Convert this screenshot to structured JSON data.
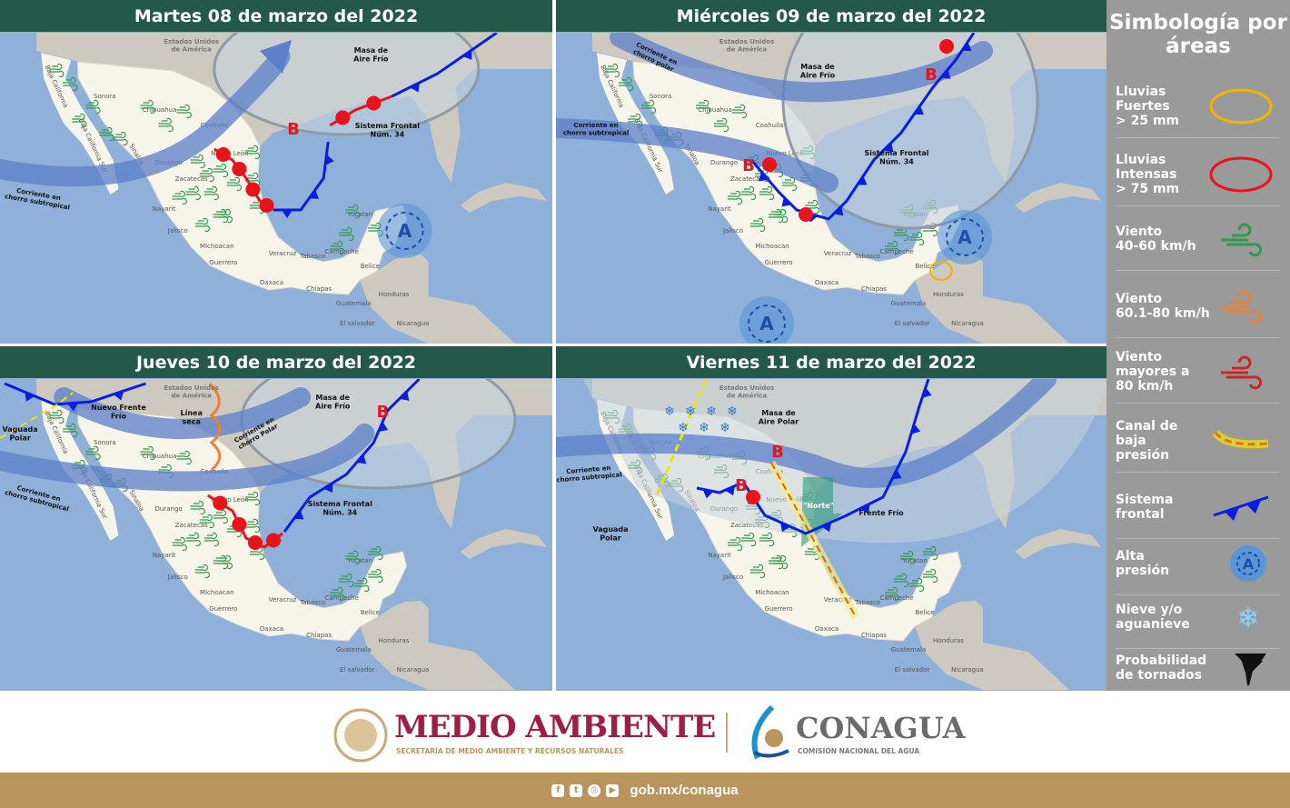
{
  "panels": [
    {
      "title": "Martes 08 de marzo del 2022",
      "annotations": [
        "Estados Unidos de América",
        "Masa de Aire Frío",
        "Sistema Frontal Núm. 34",
        "Corriente en chorro subtropical"
      ],
      "lows": [
        "B"
      ],
      "highs": [
        "A"
      ]
    },
    {
      "title": "Miércoles 09 de marzo del 2022",
      "annotations": [
        "Estados Unidos de América",
        "Corriente en chorro polar",
        "Masa de Aire Frío",
        "Corriente en chorro subtropical",
        "Sistema Frontal Núm. 34"
      ],
      "lows": [
        "B",
        "B"
      ],
      "highs": [
        "A",
        "A"
      ]
    },
    {
      "title": "Jueves 10 de marzo del 2022",
      "annotations": [
        "Estados Unidos de América",
        "Nuevo Frente Frío",
        "Vaguada Polar",
        "Línea seca",
        "Corriente en chorro Polar",
        "Corriente en chorro subtropical",
        "Masa de Aire Frío",
        "Sistema Frontal Núm. 34"
      ],
      "lows": [
        "B"
      ],
      "highs": []
    },
    {
      "title": "Viernes 11 de marzo del 2022",
      "annotations": [
        "Estados Unidos de América",
        "Corriente en chorro subtropical",
        "Masa de Aire Polar",
        "Vaguada Polar",
        "\"Norte\"",
        "Frente Frío"
      ],
      "lows": [
        "B",
        "B"
      ],
      "highs": []
    }
  ],
  "geo_labels": [
    "Sonora",
    "Chihuahua",
    "Coahuila",
    "Nuevo León",
    "Durango",
    "Zacatecas",
    "Nayarit",
    "Jalisco",
    "Michoacan",
    "Guerrero",
    "Oaxaca",
    "Veracruz",
    "Tabasco",
    "Chiapas",
    "Campeche",
    "Yucatan",
    "Belice",
    "Guatemala",
    "Honduras",
    "El salvador",
    "Nicaragua",
    "Sinaloa",
    "Baja California Sur",
    "Baja California"
  ],
  "legend": {
    "title": "Simbología por áreas",
    "items": [
      {
        "label": "Lluvias\nFuertes\n> 25 mm",
        "icon": "yellow-ellipse-icon"
      },
      {
        "label": "Lluvias\nIntensas\n> 75 mm",
        "icon": "red-ellipse-icon"
      },
      {
        "label": "Viento\n40-60 km/h",
        "icon": "green-wind-icon"
      },
      {
        "label": "Viento\n60.1-80 km/h",
        "icon": "orange-wind-icon"
      },
      {
        "label": "Viento\nmayores a\n80 km/h",
        "icon": "red-wind-icon"
      },
      {
        "label": "Canal de\nbaja\npresión",
        "icon": "trough-icon"
      },
      {
        "label": "Sistema\nfrontal",
        "icon": "cold-front-icon"
      },
      {
        "label": "Alta\npresión",
        "icon": "high-pressure-icon"
      },
      {
        "label": "Nieve y/o\naguanieve",
        "icon": "snowflake-icon"
      },
      {
        "label": "Probabilidad\nde tornados",
        "icon": "tornado-icon"
      }
    ]
  },
  "colors": {
    "title_bar": "#245848",
    "ocean": "#8fb0d8",
    "land": "#f7f4ea",
    "wind_green": "#2e9a4a",
    "wind_orange": "#e8813a",
    "wind_red": "#c8282a",
    "rain_yellow": "#f3b400",
    "rain_red": "#e8141c",
    "front_blue": "#0a1ee0",
    "footer_gold": "#b9955d"
  },
  "footer": {
    "semarnat": "MEDIO AMBIENTE",
    "semarnat_sub": "SECRETARÍA DE MEDIO AMBIENTE Y RECURSOS NATURALES",
    "conagua": "CONAGUA",
    "conagua_sub": "COMISIÓN NACIONAL DEL AGUA",
    "social_icons": [
      "facebook-icon",
      "twitter-icon",
      "instagram-icon",
      "youtube-icon"
    ],
    "url": "gob.mx/conagua"
  }
}
